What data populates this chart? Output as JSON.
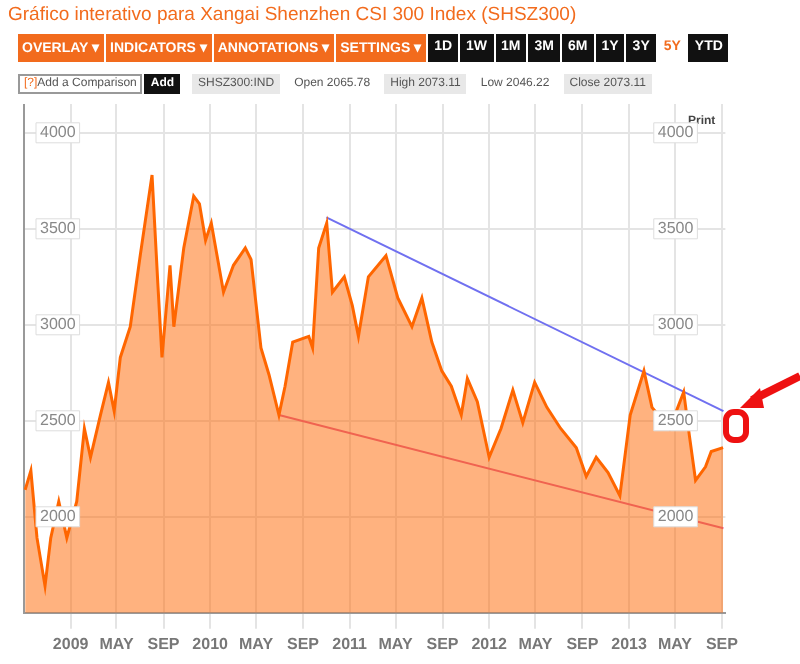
{
  "chart_data": {
    "type": "area",
    "title": "Gráfico interativo para Xangai Shenzhen CSI 300 Index (SHSZ300)",
    "annotations": [
      "OVERLAY ▾",
      "INDICATORS ▾",
      "ANNOTATIONS ▾",
      "SETTINGS ▾",
      "1D",
      "1W",
      "1M",
      "3M",
      "6M",
      "1Y",
      "3Y",
      "5Y",
      "YTD",
      "[?]",
      "Add a Comparison",
      "Add",
      "SHSZ300:IND",
      "Open 2065.78",
      "High 2073.11",
      "Low 2046.22",
      "Close 2073.11",
      "Print"
    ],
    "series": [
      {
        "color": "#ff6600",
        "x": [
          "2008-09-04",
          "2008-09-19",
          "2008-10-05",
          "2008-10-26",
          "2008-11-10",
          "2008-12-01",
          "2008-12-22",
          "2009-01-17",
          "2009-02-06",
          "2009-02-22",
          "2009-03-20",
          "2009-04-10",
          "2009-04-25",
          "2009-05-11",
          "2009-06-06",
          "2009-07-02",
          "2009-08-02",
          "2009-08-17",
          "2009-08-28",
          "2009-09-18",
          "2009-09-28",
          "2009-10-24",
          "2009-11-19",
          "2009-12-04",
          "2009-12-20",
          "2010-01-04",
          "2010-02-05",
          "2010-03-03",
          "2010-04-03",
          "2010-04-18",
          "2010-05-14",
          "2010-06-04",
          "2010-06-30",
          "2010-07-16",
          "2010-08-05",
          "2010-09-16",
          "2010-09-26",
          "2010-10-12",
          "2010-11-02",
          "2010-11-17",
          "2010-12-18",
          "2011-01-08",
          "2011-01-24",
          "2011-02-19",
          "2011-04-06",
          "2011-05-07",
          "2011-06-13",
          "2011-07-09",
          "2011-08-04",
          "2011-08-30",
          "2011-09-24",
          "2011-10-20",
          "2011-11-05",
          "2011-12-01",
          "2012-01-01",
          "2012-02-01",
          "2012-03-03",
          "2012-03-29",
          "2012-04-29",
          "2012-05-31",
          "2012-07-06",
          "2012-08-16",
          "2012-09-11",
          "2012-10-07",
          "2012-11-07",
          "2012-12-08",
          "2013-01-04",
          "2013-02-09",
          "2013-03-02",
          "2013-04-17",
          "2013-05-24",
          "2013-06-08",
          "2013-06-24",
          "2013-07-20",
          "2013-08-04",
          "2013-09-04"
        ],
        "values": [
          2140,
          2240,
          1890,
          1640,
          1890,
          2080,
          1890,
          2080,
          2460,
          2310,
          2530,
          2700,
          2550,
          2830,
          2990,
          3360,
          3780,
          3220,
          2830,
          3310,
          2990,
          3400,
          3670,
          3630,
          3440,
          3530,
          3170,
          3310,
          3400,
          3340,
          2880,
          2740,
          2530,
          2680,
          2910,
          2940,
          2880,
          3400,
          3530,
          3170,
          3250,
          3100,
          2940,
          3250,
          3360,
          3140,
          2990,
          3140,
          2910,
          2760,
          2680,
          2530,
          2720,
          2600,
          2310,
          2460,
          2660,
          2490,
          2700,
          2570,
          2460,
          2360,
          2210,
          2310,
          2230,
          2110,
          2530,
          2760,
          2570,
          2460,
          2650,
          2420,
          2190,
          2260,
          2340,
          2360
        ]
      },
      {
        "type": "line",
        "color": "#7070f0",
        "x": [
          "2010-11-01",
          "2013-09-05"
        ],
        "values": [
          3560,
          2550
        ]
      },
      {
        "type": "line",
        "color": "#e060a0",
        "x": [
          "2010-06-30",
          "2013-09-05"
        ],
        "values": [
          2530,
          1940
        ]
      }
    ],
    "xlim": [
      "2008-09-01",
      "2013-09-10"
    ],
    "xticks": [
      {
        "value": "2009-01-01",
        "label": "2009"
      },
      {
        "value": "2009-05-01",
        "label": "MAY"
      },
      {
        "value": "2009-09-01",
        "label": "SEP"
      },
      {
        "value": "2010-01-01",
        "label": "2010"
      },
      {
        "value": "2010-05-01",
        "label": "MAY"
      },
      {
        "value": "2010-09-01",
        "label": "SEP"
      },
      {
        "value": "2011-01-01",
        "label": "2011"
      },
      {
        "value": "2011-05-01",
        "label": "MAY"
      },
      {
        "value": "2011-09-01",
        "label": "SEP"
      },
      {
        "value": "2012-01-01",
        "label": "2012"
      },
      {
        "value": "2012-05-01",
        "label": "MAY"
      },
      {
        "value": "2012-09-01",
        "label": "SEP"
      },
      {
        "value": "2013-01-01",
        "label": "2013"
      },
      {
        "value": "2013-05-01",
        "label": "MAY"
      },
      {
        "value": "2013-09-01",
        "label": "SEP"
      }
    ],
    "ylim": [
      1500,
      4150
    ],
    "yticks": [
      2000,
      2500,
      3000,
      3500,
      4000
    ],
    "y2lim": [
      1500,
      4150
    ],
    "y2ticks": [
      2000,
      2500,
      3000,
      3500,
      4000
    ],
    "grid": true,
    "legend": false
  }
}
